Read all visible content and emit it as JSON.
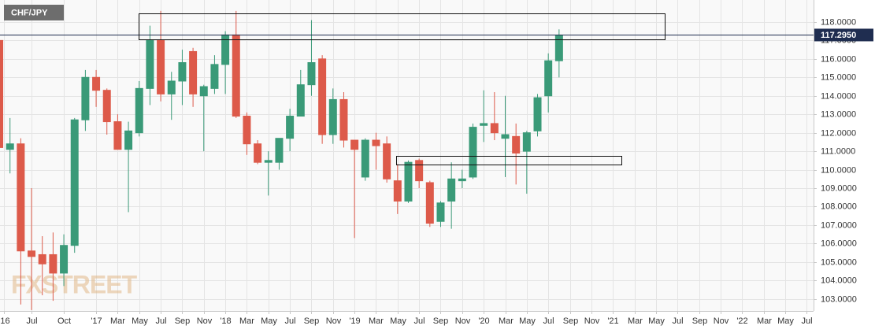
{
  "chart_data": {
    "type": "candlestick",
    "title": "CHF/JPY",
    "watermark": "FXSTREET",
    "up_color": "#3a9a78",
    "down_color": "#dd5a4a",
    "grid": true,
    "x": [
      3,
      4,
      5,
      6,
      7,
      8,
      9,
      10,
      11,
      12,
      13,
      14,
      15,
      16,
      17,
      18,
      19,
      20,
      21,
      22,
      23,
      24,
      25,
      26,
      27,
      28,
      29,
      30,
      31,
      32,
      33,
      34,
      35,
      36,
      37,
      38,
      39,
      40,
      41,
      42,
      43,
      44,
      45,
      46,
      47,
      48,
      49,
      50,
      51,
      52,
      53,
      54,
      55
    ],
    "open": [
      117.0,
      111.1,
      111.4,
      105.6,
      105.4,
      105.4,
      104.4,
      105.9,
      112.7,
      115.0,
      114.3,
      112.6,
      111.1,
      112.0,
      114.4,
      117.0,
      114.1,
      114.8,
      116.4,
      114.0,
      114.4,
      115.7,
      117.3,
      112.9,
      111.4,
      110.4,
      110.4,
      111.7,
      112.9,
      114.6,
      116.0,
      111.9,
      113.8,
      111.6,
      109.6,
      111.6,
      111.4,
      109.4,
      108.3,
      110.5,
      109.3,
      107.2,
      108.3,
      109.4,
      109.6,
      112.4,
      112.5,
      111.7,
      111.8,
      111.0,
      112.1,
      114.0,
      115.9
    ],
    "high": [
      117.8,
      112.8,
      111.7,
      109.0,
      106.4,
      106.6,
      106.5,
      112.8,
      115.4,
      115.4,
      114.4,
      113.0,
      112.6,
      114.8,
      117.8,
      118.6,
      115.3,
      116.5,
      116.6,
      114.6,
      116.2,
      117.5,
      118.6,
      113.1,
      111.6,
      111.0,
      111.7,
      113.3,
      115.4,
      118.1,
      116.2,
      114.4,
      114.2,
      111.6,
      111.7,
      112.0,
      111.8,
      110.3,
      110.5,
      110.6,
      109.4,
      108.3,
      110.4,
      110.0,
      112.5,
      114.3,
      114.2,
      114.0,
      112.5,
      112.1,
      114.1,
      116.3,
      117.6
    ],
    "low": [
      109.9,
      109.8,
      102.7,
      102.4,
      103.2,
      102.9,
      103.7,
      105.5,
      112.1,
      113.4,
      111.9,
      111.1,
      107.7,
      111.8,
      113.5,
      113.7,
      112.7,
      113.5,
      113.4,
      111.0,
      114.1,
      114.1,
      112.8,
      110.8,
      110.3,
      108.6,
      110.0,
      111.0,
      112.9,
      114.0,
      111.4,
      111.4,
      111.2,
      106.3,
      109.4,
      110.0,
      109.3,
      107.6,
      108.2,
      109.0,
      106.9,
      106.9,
      106.8,
      109.0,
      109.5,
      111.5,
      111.6,
      109.6,
      109.2,
      108.7,
      111.8,
      113.1,
      115.0
    ],
    "close": [
      111.2,
      111.4,
      105.6,
      105.3,
      104.9,
      104.4,
      105.9,
      112.7,
      115.0,
      114.3,
      112.6,
      111.1,
      112.1,
      114.4,
      117.0,
      114.1,
      114.8,
      115.8,
      114.1,
      114.5,
      115.7,
      117.3,
      112.9,
      111.4,
      110.4,
      110.5,
      111.7,
      112.9,
      114.6,
      115.8,
      111.9,
      113.8,
      111.6,
      111.1,
      111.6,
      111.3,
      109.5,
      108.3,
      110.4,
      109.4,
      107.1,
      108.2,
      109.5,
      109.5,
      112.3,
      112.5,
      112.0,
      111.9,
      110.9,
      112.0,
      113.9,
      115.9,
      117.295
    ],
    "last_price_label": "117.2950",
    "ylim": [
      102.35,
      119.19
    ],
    "yticks": [
      {
        "value": 103,
        "label": "103.0000"
      },
      {
        "value": 104,
        "label": "104.0000"
      },
      {
        "value": 105,
        "label": "105.0000"
      },
      {
        "value": 106,
        "label": "106.0000"
      },
      {
        "value": 107,
        "label": "107.0000"
      },
      {
        "value": 108,
        "label": "108.0000"
      },
      {
        "value": 109,
        "label": "109.0000"
      },
      {
        "value": 110,
        "label": "110.0000"
      },
      {
        "value": 111,
        "label": "111.0000"
      },
      {
        "value": 112,
        "label": "112.0000"
      },
      {
        "value": 113,
        "label": "113.0000"
      },
      {
        "value": 114,
        "label": "114.0000"
      },
      {
        "value": 115,
        "label": "115.0000"
      },
      {
        "value": 116,
        "label": "116.0000"
      },
      {
        "value": 117,
        "label": "117.0000"
      },
      {
        "value": 118,
        "label": "118.0000"
      }
    ],
    "xlim": [
      3.07,
      78.64
    ],
    "xticks": [
      {
        "value": 3.4,
        "label": "'16"
      },
      {
        "value": 6,
        "label": "Jul"
      },
      {
        "value": 9,
        "label": "Oct"
      },
      {
        "value": 12,
        "label": "'17"
      },
      {
        "value": 14,
        "label": "Mar"
      },
      {
        "value": 16,
        "label": "May"
      },
      {
        "value": 18,
        "label": "Jul"
      },
      {
        "value": 20,
        "label": "Sep"
      },
      {
        "value": 22,
        "label": "Nov"
      },
      {
        "value": 24,
        "label": "'18"
      },
      {
        "value": 26,
        "label": "Mar"
      },
      {
        "value": 28,
        "label": "May"
      },
      {
        "value": 30,
        "label": "Jul"
      },
      {
        "value": 32,
        "label": "Sep"
      },
      {
        "value": 34,
        "label": "Nov"
      },
      {
        "value": 36,
        "label": "'19"
      },
      {
        "value": 38,
        "label": "Mar"
      },
      {
        "value": 40,
        "label": "May"
      },
      {
        "value": 42,
        "label": "Jul"
      },
      {
        "value": 44,
        "label": "Sep"
      },
      {
        "value": 46,
        "label": "Nov"
      },
      {
        "value": 48,
        "label": "'20"
      },
      {
        "value": 50,
        "label": "Mar"
      },
      {
        "value": 52,
        "label": "May"
      },
      {
        "value": 54,
        "label": "Jul"
      },
      {
        "value": 56,
        "label": "Sep"
      },
      {
        "value": 58,
        "label": "Nov"
      },
      {
        "value": 60,
        "label": "'21"
      },
      {
        "value": 62,
        "label": "Mar"
      },
      {
        "value": 64,
        "label": "May"
      },
      {
        "value": 66,
        "label": "Jul"
      },
      {
        "value": 68,
        "label": "Sep"
      },
      {
        "value": 70,
        "label": "Nov"
      },
      {
        "value": 72,
        "label": "'22"
      },
      {
        "value": 74,
        "label": "Mar"
      },
      {
        "value": 76,
        "label": "May"
      },
      {
        "value": 78,
        "label": "Jul"
      }
    ]
  }
}
